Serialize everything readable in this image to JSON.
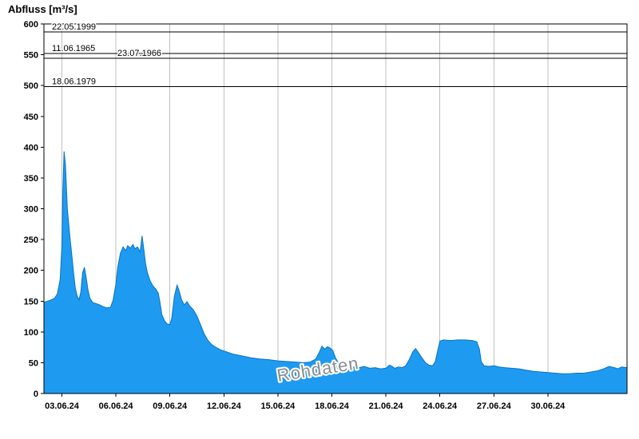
{
  "watermark": "Rohdaten",
  "colors": {
    "area_fill": "#1E9BF0",
    "area_stroke": "#0873C4",
    "grid": "#C0C0C0",
    "axis": "#000000",
    "watermark": "#8C8C8C"
  },
  "chart_data": {
    "type": "area",
    "title": "Abfluss [m³/s]",
    "ylabel": "Abfluss [m³/s]",
    "xlabel": "",
    "ylim": [
      0,
      600
    ],
    "grid": "vertical-only",
    "legend": "none",
    "y_ticks": [
      0,
      50,
      100,
      150,
      200,
      250,
      300,
      350,
      400,
      450,
      500,
      550,
      600
    ],
    "x_domain_days": [
      0,
      32.4
    ],
    "x_ticks": [
      {
        "day": 1,
        "label": "03.06.24"
      },
      {
        "day": 4,
        "label": "06.06.24"
      },
      {
        "day": 7,
        "label": "09.06.24"
      },
      {
        "day": 10,
        "label": "12.06.24"
      },
      {
        "day": 13,
        "label": "15.06.24"
      },
      {
        "day": 16,
        "label": "18.06.24"
      },
      {
        "day": 19,
        "label": "21.06.24"
      },
      {
        "day": 22,
        "label": "24.06.24"
      },
      {
        "day": 25,
        "label": "27.06.24"
      },
      {
        "day": 28,
        "label": "30.06.24"
      }
    ],
    "reference_lines": [
      {
        "label": "22.05.1999",
        "value": 587,
        "label_offset_x": 10
      },
      {
        "label": "11.06.1965",
        "value": 552,
        "label_offset_x": 10
      },
      {
        "label": "23.07.1966",
        "value": 544,
        "label_offset_x": 92
      },
      {
        "label": "18.06.1979",
        "value": 498,
        "label_offset_x": 10
      }
    ],
    "series": [
      {
        "name": "Rohdaten",
        "x": [
          0,
          0.2,
          0.4,
          0.6,
          0.75,
          0.9,
          1.0,
          1.05,
          1.12,
          1.2,
          1.3,
          1.45,
          1.55,
          1.65,
          1.75,
          1.85,
          1.95,
          2.05,
          2.15,
          2.25,
          2.35,
          2.45,
          2.55,
          2.7,
          2.9,
          3.1,
          3.3,
          3.5,
          3.7,
          3.85,
          4.0,
          4.1,
          4.25,
          4.4,
          4.55,
          4.65,
          4.8,
          4.95,
          5.05,
          5.2,
          5.35,
          5.45,
          5.55,
          5.65,
          5.75,
          5.9,
          6.05,
          6.2,
          6.35,
          6.45,
          6.55,
          6.7,
          6.85,
          7.0,
          7.1,
          7.25,
          7.4,
          7.5,
          7.65,
          7.8,
          7.95,
          8.1,
          8.3,
          8.5,
          8.7,
          8.9,
          9.1,
          9.3,
          9.5,
          9.8,
          10.1,
          10.5,
          11.0,
          11.5,
          12.0,
          12.5,
          13.0,
          13.5,
          14.0,
          14.4,
          14.8,
          15.1,
          15.3,
          15.45,
          15.6,
          15.75,
          15.9,
          16.05,
          16.2,
          16.35,
          16.6,
          16.9,
          17.2,
          17.5,
          17.8,
          18.1,
          18.4,
          18.7,
          19.0,
          19.2,
          19.35,
          19.5,
          19.7,
          19.9,
          20.1,
          20.3,
          20.5,
          20.65,
          20.8,
          21.0,
          21.2,
          21.4,
          21.6,
          21.75,
          21.9,
          22.0,
          22.2,
          22.6,
          23.0,
          23.4,
          23.8,
          24.05,
          24.2,
          24.3,
          24.45,
          24.7,
          25.0,
          25.3,
          25.6,
          26.0,
          26.4,
          26.8,
          27.2,
          27.6,
          28.0,
          28.4,
          28.8,
          29.2,
          29.6,
          30.0,
          30.4,
          30.8,
          31.1,
          31.4,
          31.7,
          31.9,
          32.1,
          32.4
        ],
        "y": [
          148,
          150,
          152,
          155,
          162,
          185,
          240,
          330,
          393,
          370,
          300,
          252,
          225,
          195,
          170,
          158,
          152,
          165,
          196,
          205,
          188,
          168,
          155,
          148,
          146,
          144,
          141,
          139,
          140,
          152,
          178,
          205,
          228,
          238,
          232,
          240,
          236,
          242,
          235,
          238,
          230,
          256,
          235,
          210,
          196,
          183,
          175,
          170,
          163,
          148,
          128,
          118,
          113,
          112,
          122,
          158,
          176,
          168,
          152,
          144,
          149,
          142,
          136,
          126,
          112,
          97,
          87,
          80,
          76,
          71,
          68,
          64,
          61,
          58,
          56,
          55,
          53,
          52,
          51,
          50,
          51,
          56,
          67,
          77,
          72,
          76,
          74,
          70,
          58,
          50,
          46,
          44,
          43,
          42,
          44,
          41,
          42,
          40,
          41,
          46,
          44,
          41,
          43,
          42,
          45,
          55,
          68,
          73,
          67,
          58,
          50,
          46,
          45,
          52,
          72,
          85,
          87,
          86,
          87,
          87,
          86,
          84,
          72,
          52,
          45,
          44,
          45,
          43,
          42,
          41,
          40,
          38,
          36,
          35,
          34,
          33,
          32,
          32,
          33,
          33,
          35,
          37,
          40,
          44,
          42,
          40,
          43,
          42
        ]
      }
    ]
  }
}
